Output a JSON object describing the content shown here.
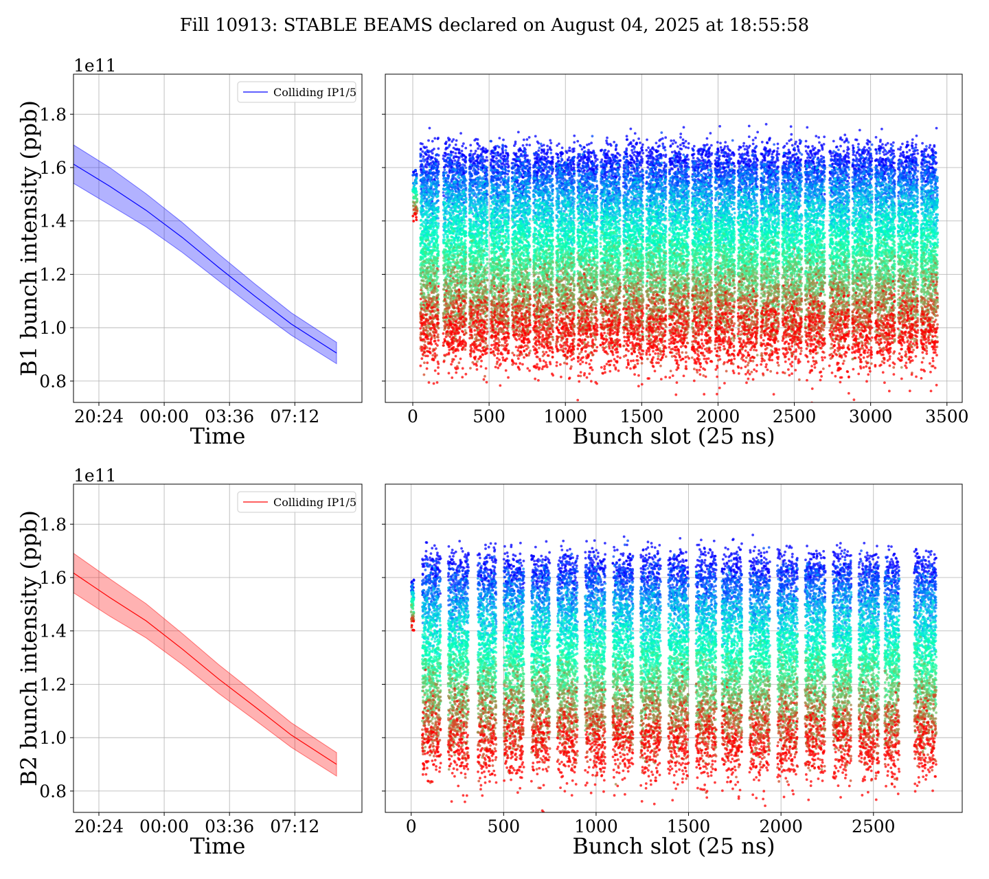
{
  "title": "Fill 10913: STABLE BEAMS declared on August 04, 2025 at 18:55:58",
  "colors": {
    "b1": "#0000ff",
    "b2": "#ff0000",
    "grid": "#b0b0b0"
  },
  "chart_data": [
    {
      "id": "b1-time",
      "type": "line",
      "xlabel": "Time",
      "ylabel": "B1 bunch intensity (ppb)",
      "y_offset_label": "1e11",
      "y_multiplier": 100000000000.0,
      "ylim": [
        0.72,
        1.95
      ],
      "yticks": [
        0.8,
        1.0,
        1.2,
        1.4,
        1.6,
        1.8
      ],
      "yticklabels": [
        "0.8",
        "1.0",
        "1.2",
        "1.4",
        "1.6",
        "1.8"
      ],
      "x_unit": "hours since 00:00 (Aug 05)",
      "xlim": [
        -5.0,
        10.9
      ],
      "xticks": [
        -3.6,
        0,
        3.6,
        7.2
      ],
      "xticklabels": [
        "20:24",
        "00:00",
        "03:36",
        "07:12"
      ],
      "legend": {
        "label": "Colliding IP1/5",
        "loc": "upper right"
      },
      "series": [
        {
          "name": "Colliding IP1/5",
          "color": "#0000ff",
          "x": [
            -5.0,
            -3.0,
            -1.0,
            1.0,
            3.0,
            5.0,
            7.0,
            9.5
          ],
          "y": [
            1.613,
            1.53,
            1.44,
            1.338,
            1.226,
            1.118,
            1.014,
            0.905
          ],
          "band_half_width": [
            0.072,
            0.07,
            0.062,
            0.056,
            0.05,
            0.046,
            0.042,
            0.04
          ]
        }
      ]
    },
    {
      "id": "b1-slot",
      "type": "scatter",
      "xlabel": "Bunch slot (25 ns)",
      "ylabel": "",
      "y_multiplier": 100000000000.0,
      "ylim": [
        0.72,
        1.95
      ],
      "yticks": [
        0.8,
        1.0,
        1.2,
        1.4,
        1.6,
        1.8
      ],
      "xlim": [
        -180,
        3600
      ],
      "xticks": [
        0,
        500,
        1000,
        1500,
        2000,
        2500,
        3000,
        3500
      ],
      "xticklabels": [
        "0",
        "500",
        "1000",
        "1500",
        "2000",
        "2500",
        "3000",
        "3500"
      ],
      "colormap": "rainbow",
      "pilot_slot": [
        0,
        30
      ],
      "train_groups": [
        [
          50,
          170
        ],
        [
          200,
          350
        ],
        [
          370,
          490
        ],
        [
          510,
          630
        ],
        [
          650,
          770
        ],
        [
          790,
          920
        ],
        [
          940,
          1060
        ],
        [
          1080,
          1210
        ],
        [
          1230,
          1360
        ],
        [
          1380,
          1510
        ],
        [
          1530,
          1660
        ],
        [
          1680,
          1810
        ],
        [
          1830,
          1960
        ],
        [
          1980,
          2110
        ],
        [
          2130,
          2260
        ],
        [
          2280,
          2400
        ],
        [
          2420,
          2550
        ],
        [
          2570,
          2700
        ],
        [
          2730,
          2860
        ],
        [
          2880,
          3010
        ],
        [
          3030,
          3160
        ],
        [
          3180,
          3310
        ],
        [
          3330,
          3440
        ]
      ],
      "y_high": 1.62,
      "y_low": 0.96,
      "y_spread": 0.055
    },
    {
      "id": "b2-time",
      "type": "line",
      "xlabel": "Time",
      "ylabel": "B2 bunch intensity (ppb)",
      "y_offset_label": "1e11",
      "y_multiplier": 100000000000.0,
      "ylim": [
        0.72,
        1.95
      ],
      "yticks": [
        0.8,
        1.0,
        1.2,
        1.4,
        1.6,
        1.8
      ],
      "yticklabels": [
        "0.8",
        "1.0",
        "1.2",
        "1.4",
        "1.6",
        "1.8"
      ],
      "x_unit": "hours since 00:00 (Aug 05)",
      "xlim": [
        -5.0,
        10.9
      ],
      "xticks": [
        -3.6,
        0,
        3.6,
        7.2
      ],
      "xticklabels": [
        "20:24",
        "00:00",
        "03:36",
        "07:12"
      ],
      "legend": {
        "label": "Colliding IP1/5",
        "loc": "upper right"
      },
      "series": [
        {
          "name": "Colliding IP1/5",
          "color": "#ff0000",
          "x": [
            -5.0,
            -3.0,
            -1.0,
            1.0,
            3.0,
            5.0,
            7.0,
            9.5
          ],
          "y": [
            1.617,
            1.525,
            1.438,
            1.332,
            1.22,
            1.116,
            1.01,
            0.9
          ],
          "band_half_width": [
            0.074,
            0.07,
            0.064,
            0.058,
            0.054,
            0.05,
            0.046,
            0.044
          ]
        }
      ]
    },
    {
      "id": "b2-slot",
      "type": "scatter",
      "xlabel": "Bunch slot (25 ns)",
      "ylabel": "",
      "y_multiplier": 100000000000.0,
      "ylim": [
        0.72,
        1.95
      ],
      "yticks": [
        0.8,
        1.0,
        1.2,
        1.4,
        1.6,
        1.8
      ],
      "xlim": [
        -140,
        2980
      ],
      "xticks": [
        0,
        500,
        1000,
        1500,
        2000,
        2500
      ],
      "xticklabels": [
        "0",
        "500",
        "1000",
        "1500",
        "2000",
        "2500"
      ],
      "colormap": "rainbow",
      "pilot_slot": [
        0,
        15
      ],
      "train_groups": [
        [
          60,
          160
        ],
        [
          200,
          310
        ],
        [
          360,
          460
        ],
        [
          500,
          610
        ],
        [
          650,
          750
        ],
        [
          790,
          900
        ],
        [
          940,
          1050
        ],
        [
          1090,
          1200
        ],
        [
          1240,
          1350
        ],
        [
          1390,
          1500
        ],
        [
          1540,
          1650
        ],
        [
          1680,
          1790
        ],
        [
          1830,
          1940
        ],
        [
          1980,
          2090
        ],
        [
          2130,
          2240
        ],
        [
          2280,
          2380
        ],
        [
          2420,
          2530
        ],
        [
          2560,
          2640
        ],
        [
          2720,
          2840
        ]
      ],
      "y_high": 1.63,
      "y_low": 0.96,
      "y_spread": 0.055
    }
  ]
}
